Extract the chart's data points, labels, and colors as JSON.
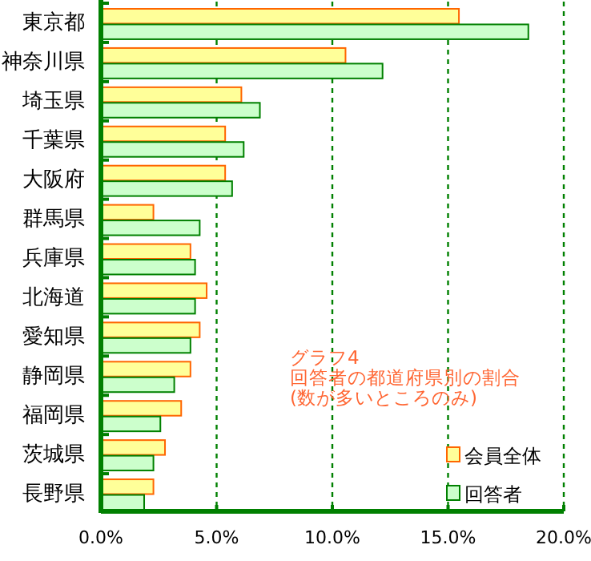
{
  "chart_data": {
    "type": "bar",
    "orientation": "horizontal",
    "categories": [
      "東京都",
      "神奈川県",
      "埼玉県",
      "千葉県",
      "大阪府",
      "群馬県",
      "兵庫県",
      "北海道",
      "愛知県",
      "静岡県",
      "福岡県",
      "茨城県",
      "長野県"
    ],
    "series": [
      {
        "name": "会員全体",
        "color": "#ffff99",
        "values": [
          15.4,
          10.5,
          6.0,
          5.3,
          5.3,
          2.2,
          3.8,
          4.5,
          4.2,
          3.8,
          3.4,
          2.7,
          2.2
        ]
      },
      {
        "name": "回答者",
        "color": "#ccffcc",
        "values": [
          18.4,
          12.1,
          6.8,
          6.1,
          5.6,
          4.2,
          4.0,
          4.0,
          3.8,
          3.1,
          2.5,
          2.2,
          1.8
        ]
      }
    ],
    "xlim": [
      0,
      20
    ],
    "xticks": [
      {
        "value": 0,
        "label": "0.0%"
      },
      {
        "value": 5,
        "label": "5.0%"
      },
      {
        "value": 10,
        "label": "10.0%"
      },
      {
        "value": 15,
        "label": "15.0%"
      },
      {
        "value": 20,
        "label": "20.0%"
      }
    ],
    "grid": "x",
    "legend": "bottom right",
    "annotations": [
      "グラフ4\n回答者の都道府県別の割合\n(数が多いところのみ)"
    ]
  }
}
